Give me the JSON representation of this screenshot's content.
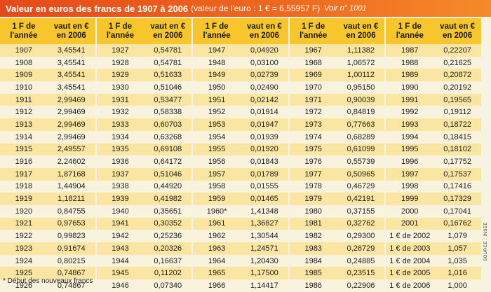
{
  "title": {
    "main": "Valeur en euros des francs de 1907 à 2006",
    "sub": "(valeur de l'euro : 1 € = 6,55957 F)",
    "ref": "Voir n° 1001"
  },
  "headers": {
    "year": "1 F de\nl'année",
    "value": "vaut en €\nen 2006"
  },
  "columns": [
    {
      "rows": [
        [
          "1907",
          "3,45541"
        ],
        [
          "1908",
          "3,45541"
        ],
        [
          "1909",
          "3,45541"
        ],
        [
          "1910",
          "3,45541"
        ],
        [
          "1911",
          "2,99469"
        ],
        [
          "1912",
          "2,99469"
        ],
        [
          "1913",
          "2,99469"
        ],
        [
          "1914",
          "2,99469"
        ],
        [
          "1915",
          "2,49557"
        ],
        [
          "1916",
          "2,24602"
        ],
        [
          "1917",
          "1,87168"
        ],
        [
          "1918",
          "1,44904"
        ],
        [
          "1919",
          "1,18211"
        ],
        [
          "1920",
          "0,84755"
        ],
        [
          "1921",
          "0,97653"
        ],
        [
          "1922",
          "0,99823"
        ],
        [
          "1923",
          "0,91674"
        ],
        [
          "1924",
          "0,80215"
        ],
        [
          "1925",
          "0,74867"
        ],
        [
          "1926",
          "0,74867"
        ]
      ]
    },
    {
      "rows": [
        [
          "1927",
          "0,54781"
        ],
        [
          "1928",
          "0,54781"
        ],
        [
          "1929",
          "0,51633"
        ],
        [
          "1930",
          "0,51046"
        ],
        [
          "1931",
          "0,53477"
        ],
        [
          "1932",
          "0,58338"
        ],
        [
          "1933",
          "0,60703"
        ],
        [
          "1934",
          "0,63268"
        ],
        [
          "1935",
          "0,69108"
        ],
        [
          "1936",
          "0,64172"
        ],
        [
          "1937",
          "0,51046"
        ],
        [
          "1938",
          "0,44920"
        ],
        [
          "1939",
          "0,41982"
        ],
        [
          "1940",
          "0,35651"
        ],
        [
          "1941",
          "0,30352"
        ],
        [
          "1942",
          "0,25236"
        ],
        [
          "1943",
          "0,20326"
        ],
        [
          "1944",
          "0,16637"
        ],
        [
          "1945",
          "0,11202"
        ],
        [
          "1946",
          "0,07340"
        ]
      ]
    },
    {
      "rows": [
        [
          "1947",
          "0,04920"
        ],
        [
          "1948",
          "0,03100"
        ],
        [
          "1949",
          "0,02739"
        ],
        [
          "1950",
          "0,02490"
        ],
        [
          "1951",
          "0,02142"
        ],
        [
          "1952",
          "0,01914"
        ],
        [
          "1953",
          "0,01947"
        ],
        [
          "1954",
          "0,01939"
        ],
        [
          "1955",
          "0,01920"
        ],
        [
          "1956",
          "0,01843"
        ],
        [
          "1957",
          "0,01789"
        ],
        [
          "1958",
          "0,01555"
        ],
        [
          "1959",
          "0,01465"
        ],
        [
          "1960*",
          "1,41348"
        ],
        [
          "1961",
          "1,36827"
        ],
        [
          "1962",
          "1,30544"
        ],
        [
          "1963",
          "1,24571"
        ],
        [
          "1964",
          "1,20430"
        ],
        [
          "1965",
          "1,17500"
        ],
        [
          "1966",
          "1,14417"
        ]
      ]
    },
    {
      "rows": [
        [
          "1967",
          "1,11382"
        ],
        [
          "1968",
          "1,06572"
        ],
        [
          "1969",
          "1,00112"
        ],
        [
          "1970",
          "0,95150"
        ],
        [
          "1971",
          "0,90039"
        ],
        [
          "1972",
          "0,84819"
        ],
        [
          "1973",
          "0,77663"
        ],
        [
          "1974",
          "0,68289"
        ],
        [
          "1975",
          "0,61099"
        ],
        [
          "1976",
          "0,55739"
        ],
        [
          "1977",
          "0,50965"
        ],
        [
          "1978",
          "0,46729"
        ],
        [
          "1979",
          "0,42191"
        ],
        [
          "1980",
          "0,37155"
        ],
        [
          "1981",
          "0,32762"
        ],
        [
          "1982",
          "0,29300"
        ],
        [
          "1983",
          "0,26729"
        ],
        [
          "1984",
          "0,24885"
        ],
        [
          "1985",
          "0,23515"
        ],
        [
          "1986",
          "0,22906"
        ]
      ]
    },
    {
      "rows": [
        [
          "1987",
          "0,22207"
        ],
        [
          "1988",
          "0,21625"
        ],
        [
          "1989",
          "0,20872"
        ],
        [
          "1990",
          "0,20192"
        ],
        [
          "1991",
          "0,19565"
        ],
        [
          "1992",
          "0,19112"
        ],
        [
          "1993",
          "0,18722"
        ],
        [
          "1994",
          "0,18415"
        ],
        [
          "1995",
          "0,18102"
        ],
        [
          "1996",
          "0,17752"
        ],
        [
          "1997",
          "0,17537"
        ],
        [
          "1998",
          "0,17416"
        ],
        [
          "1999",
          "0,17329"
        ],
        [
          "2000",
          "0,17041"
        ],
        [
          "2001",
          "0,16762"
        ],
        [
          "1 € de 2002",
          "1,079"
        ],
        [
          "1 € de 2003",
          "1,057"
        ],
        [
          "1 € de 2004",
          "1,035"
        ],
        [
          "1 € de 2005",
          "1,016"
        ],
        [
          "1 € de 2006",
          "1,000"
        ]
      ]
    }
  ],
  "footnote": "* Début des nouveaux francs",
  "source": "SOURCE : INSEE",
  "colors": {
    "title_bg": "#ef6a1f",
    "header_bg": "#f6c62c",
    "row_odd": "#fae6a2",
    "row_even": "#f9f3de",
    "page_bg": "#f7f3e3"
  }
}
